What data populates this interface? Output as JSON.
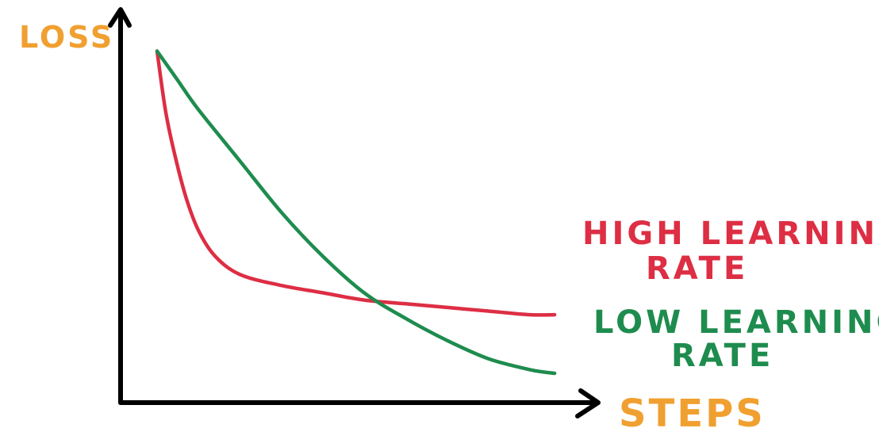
{
  "chart_data": {
    "type": "line",
    "title": "",
    "xlabel": "STEPS",
    "ylabel": "LOSS",
    "grid": false,
    "x_ticks": false,
    "y_ticks": false,
    "xlim": [
      0,
      10
    ],
    "ylim": [
      0,
      10
    ],
    "legend_placement": "right, inline at line ends",
    "axis_label_color": "#f0a030",
    "series": [
      {
        "name": "HIGH LEARNING RATE",
        "name_lines": [
          "HIGH LEARNING",
          "RATE"
        ],
        "color": "#dd2e44",
        "x": [
          0,
          0.2,
          0.4,
          0.7,
          1.0,
          1.4,
          2.0,
          3.0,
          4.0,
          5.0,
          6.0,
          7.0,
          8.0,
          9.0,
          9.6
        ],
        "y": [
          9.6,
          8.0,
          6.9,
          5.6,
          4.7,
          4.0,
          3.5,
          3.2,
          3.0,
          2.8,
          2.7,
          2.6,
          2.5,
          2.4,
          2.4
        ]
      },
      {
        "name": "LOW LEARNING RATE",
        "name_lines": [
          "LOW LEARNING",
          "RATE"
        ],
        "color": "#1e8c4e",
        "x": [
          0,
          0.5,
          1.0,
          2.0,
          3.0,
          4.0,
          5.0,
          6.0,
          7.0,
          8.0,
          9.0,
          9.6
        ],
        "y": [
          9.6,
          8.8,
          8.0,
          6.6,
          5.2,
          4.0,
          3.0,
          2.3,
          1.7,
          1.2,
          0.9,
          0.8
        ]
      }
    ]
  }
}
